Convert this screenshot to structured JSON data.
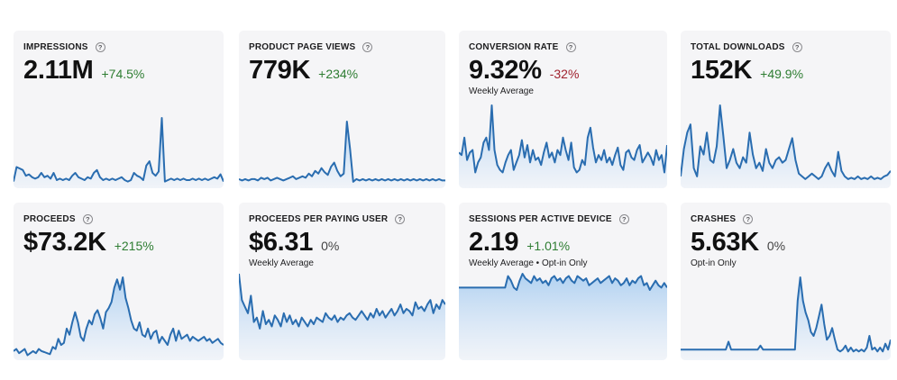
{
  "colors": {
    "line": "#2a6db0",
    "fill_top": "#a9cdf0",
    "fill_bottom": "#eef3fa"
  },
  "help_glyph": "?",
  "cards": [
    {
      "title": "IMPRESSIONS",
      "value": "2.11M",
      "delta": "+74.5%",
      "delta_tone": "pos",
      "subtitle": "",
      "series": [
        4,
        14,
        13,
        12,
        8,
        9,
        7,
        6,
        7,
        10,
        7,
        8,
        6,
        10,
        5,
        6,
        5,
        6,
        5,
        8,
        10,
        7,
        6,
        5,
        7,
        6,
        10,
        12,
        7,
        5,
        6,
        5,
        6,
        5,
        6,
        7,
        5,
        4,
        5,
        10,
        8,
        7,
        5,
        15,
        18,
        10,
        8,
        11,
        48,
        4,
        5,
        6,
        5,
        6,
        5,
        6,
        5,
        5,
        6,
        5,
        6,
        5,
        6,
        5,
        6,
        7,
        6,
        9,
        4
      ]
    },
    {
      "title": "PRODUCT PAGE VIEWS",
      "value": "779K",
      "delta": "+234%",
      "delta_tone": "pos",
      "subtitle": "",
      "series": [
        6,
        5,
        6,
        5,
        6,
        6,
        5,
        7,
        6,
        7,
        5,
        6,
        7,
        6,
        5,
        6,
        7,
        8,
        6,
        7,
        8,
        7,
        10,
        8,
        12,
        10,
        14,
        11,
        9,
        15,
        18,
        12,
        8,
        10,
        48,
        28,
        4,
        6,
        5,
        6,
        5,
        6,
        5,
        6,
        5,
        6,
        5,
        6,
        5,
        6,
        5,
        6,
        5,
        6,
        5,
        6,
        5,
        6,
        5,
        6,
        5,
        6,
        5,
        6,
        5,
        5
      ]
    },
    {
      "title": "CONVERSION RATE",
      "value": "9.32%",
      "delta": "-32%",
      "delta_tone": "neg",
      "subtitle": "Weekly Average",
      "series": [
        28,
        26,
        40,
        22,
        28,
        30,
        12,
        20,
        24,
        36,
        40,
        30,
        66,
        30,
        18,
        14,
        12,
        20,
        26,
        30,
        14,
        20,
        26,
        38,
        24,
        34,
        20,
        30,
        22,
        24,
        18,
        28,
        36,
        24,
        28,
        20,
        30,
        26,
        40,
        30,
        22,
        36,
        16,
        12,
        14,
        22,
        18,
        40,
        48,
        32,
        20,
        26,
        22,
        30,
        20,
        24,
        18,
        26,
        32,
        18,
        14,
        28,
        30,
        24,
        22,
        30,
        34,
        20,
        24,
        28,
        24,
        18,
        30,
        22,
        26,
        12,
        34
      ]
    },
    {
      "title": "TOTAL DOWNLOADS",
      "value": "152K",
      "delta": "+49.9%",
      "delta_tone": "pos",
      "subtitle": "",
      "series": [
        8,
        28,
        40,
        46,
        14,
        8,
        30,
        24,
        40,
        20,
        18,
        30,
        60,
        38,
        14,
        20,
        28,
        18,
        14,
        22,
        18,
        40,
        24,
        14,
        18,
        12,
        28,
        18,
        14,
        20,
        22,
        18,
        20,
        28,
        36,
        20,
        10,
        8,
        6,
        8,
        10,
        8,
        6,
        8,
        14,
        18,
        12,
        8,
        26,
        12,
        8,
        6,
        7,
        6,
        8,
        6,
        7,
        6,
        8,
        6,
        7,
        6,
        8,
        9,
        12
      ]
    },
    {
      "title": "PROCEEDS",
      "value": "$73.2K",
      "delta": "+215%",
      "delta_tone": "pos",
      "subtitle": "",
      "series": [
        8,
        10,
        6,
        8,
        10,
        4,
        6,
        8,
        6,
        10,
        8,
        7,
        6,
        5,
        12,
        10,
        20,
        14,
        16,
        30,
        24,
        36,
        46,
        36,
        22,
        18,
        30,
        38,
        34,
        44,
        48,
        40,
        30,
        46,
        50,
        56,
        70,
        78,
        68,
        80,
        60,
        50,
        38,
        30,
        28,
        36,
        24,
        22,
        30,
        20,
        26,
        28,
        16,
        22,
        18,
        14,
        24,
        30,
        18,
        28,
        20,
        22,
        24,
        18,
        22,
        20,
        18,
        20,
        22,
        18,
        20,
        16,
        18,
        20,
        16,
        14
      ]
    },
    {
      "title": "PROCEEDS PER PAYING USER",
      "value": "$6.31",
      "delta": "0%",
      "delta_tone": "zero",
      "subtitle": "Weekly Average",
      "series": [
        78,
        54,
        48,
        42,
        58,
        34,
        38,
        28,
        44,
        32,
        36,
        30,
        40,
        36,
        30,
        42,
        34,
        40,
        32,
        36,
        30,
        38,
        34,
        30,
        36,
        32,
        38,
        36,
        34,
        42,
        38,
        36,
        40,
        34,
        38,
        36,
        40,
        42,
        38,
        36,
        40,
        44,
        40,
        36,
        42,
        38,
        46,
        40,
        44,
        38,
        42,
        46,
        40,
        44,
        50,
        42,
        46,
        44,
        40,
        52,
        46,
        48,
        44,
        50,
        54,
        42,
        50,
        46,
        54,
        50
      ]
    },
    {
      "title": "SESSIONS PER ACTIVE DEVICE",
      "value": "2.19",
      "delta": "+1.01%",
      "delta_tone": "pos",
      "subtitle": "Weekly Average • Opt-in Only",
      "series": [
        62,
        62,
        62,
        62,
        62,
        62,
        62,
        62,
        62,
        62,
        62,
        62,
        62,
        62,
        62,
        62,
        62,
        72,
        68,
        62,
        60,
        68,
        74,
        70,
        68,
        66,
        72,
        68,
        70,
        66,
        68,
        64,
        70,
        72,
        68,
        70,
        66,
        70,
        72,
        68,
        66,
        72,
        70,
        68,
        70,
        64,
        66,
        68,
        70,
        66,
        68,
        70,
        72,
        66,
        70,
        68,
        64,
        66,
        70,
        64,
        68,
        66,
        70,
        72,
        64,
        66,
        60,
        64,
        68,
        64,
        62,
        66,
        62
      ]
    },
    {
      "title": "CRASHES",
      "value": "5.63K",
      "delta": "0%",
      "delta_tone": "zero",
      "subtitle": "Opt-in Only",
      "series": [
        5,
        5,
        5,
        5,
        5,
        5,
        5,
        5,
        5,
        5,
        5,
        5,
        5,
        5,
        5,
        5,
        5,
        5,
        9,
        5,
        5,
        5,
        5,
        5,
        5,
        5,
        5,
        5,
        5,
        5,
        7,
        5,
        5,
        5,
        5,
        5,
        5,
        5,
        5,
        5,
        5,
        5,
        5,
        5,
        30,
        42,
        30,
        24,
        20,
        14,
        12,
        16,
        22,
        28,
        18,
        10,
        12,
        16,
        10,
        5,
        4,
        5,
        7,
        4,
        6,
        4,
        5,
        4,
        5,
        4,
        6,
        12,
        5,
        6,
        4,
        6,
        4,
        8,
        5,
        10
      ]
    }
  ]
}
